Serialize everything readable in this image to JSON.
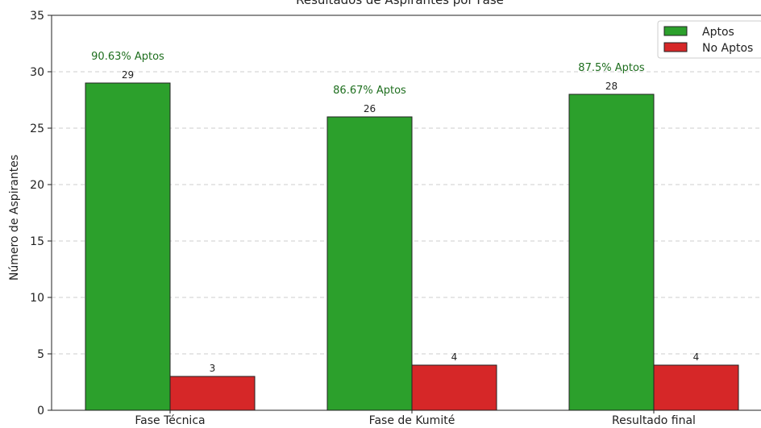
{
  "chart_data": {
    "type": "bar",
    "title": "Resultados de Aspirantes por Fase",
    "xlabel": "",
    "ylabel": "Número de Aspirantes",
    "ylim": [
      0,
      35
    ],
    "yticks": [
      0,
      5,
      10,
      15,
      20,
      25,
      30,
      35
    ],
    "grid": true,
    "legend_position": "top-right",
    "categories": [
      "Fase Técnica",
      "Fase de Kumité",
      "Resultado final"
    ],
    "series": [
      {
        "name": "Aptos",
        "values": [
          29,
          26,
          28
        ],
        "color": "#2ca02c"
      },
      {
        "name": "No Aptos",
        "values": [
          3,
          4,
          4
        ],
        "color": "#d62728"
      }
    ],
    "annotations": [
      "90.63% Aptos",
      "86.67% Aptos",
      "87.5% Aptos"
    ],
    "annotation_color": "#1e6e1e"
  }
}
